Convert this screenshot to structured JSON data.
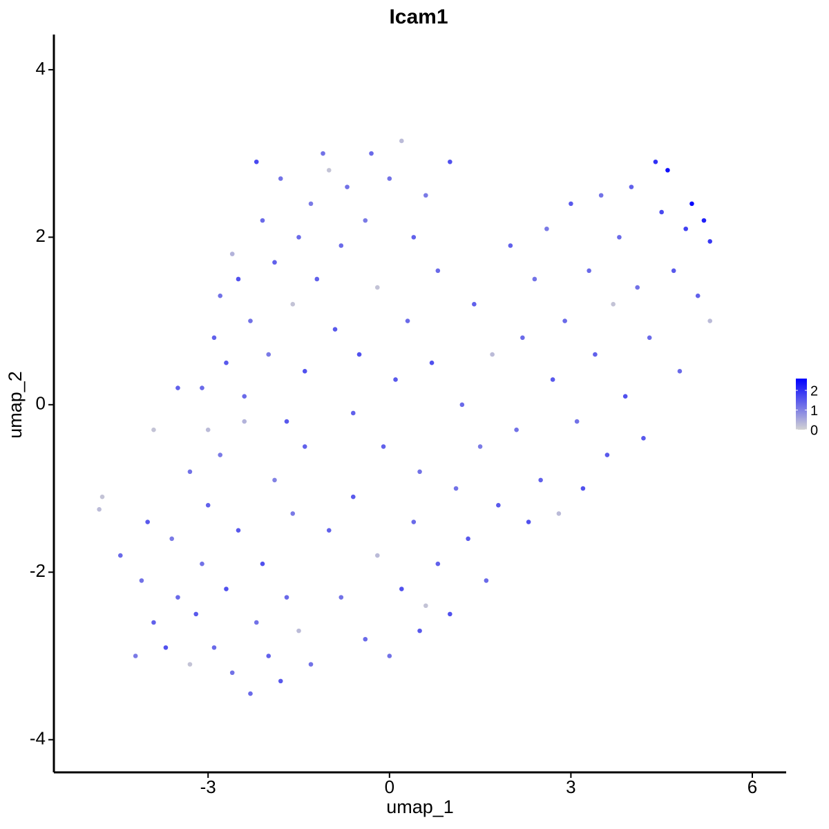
{
  "chart_data": {
    "type": "scatter",
    "title": "Icam1",
    "x_label": "umap_1",
    "y_label": "umap_2",
    "xlim": [
      -5.55,
      6.56
    ],
    "ylim": [
      -4.39,
      4.42
    ],
    "xticks": [
      -3,
      0,
      3,
      6
    ],
    "yticks": [
      -4,
      -2,
      0,
      2,
      4
    ],
    "color_lim": [
      0,
      2.6
    ],
    "color_ticks": [
      0,
      1,
      2
    ],
    "low_color": "#d3d3d3",
    "high_color": "#0000ff",
    "x": [
      -4.8,
      -4.75,
      -4.45,
      -4.1,
      -4.0,
      -3.9,
      -3.7,
      -3.6,
      -3.5,
      -3.3,
      -3.2,
      -3.1,
      -3.0,
      -2.9,
      -2.8,
      -2.7,
      -2.6,
      -2.5,
      -2.4,
      -2.3,
      -2.2,
      -2.1,
      -2.0,
      -1.9,
      -1.8,
      -1.7,
      -1.6,
      -1.5,
      -1.4,
      -1.3,
      -3.1,
      -3.0,
      -2.9,
      -2.8,
      -2.7,
      -2.6,
      -2.5,
      -2.4,
      -2.3,
      -2.2,
      -2.1,
      -2.0,
      -1.9,
      -1.8,
      -1.7,
      -1.6,
      -1.5,
      -1.4,
      -1.3,
      -1.2,
      -1.1,
      -1.0,
      -0.9,
      -0.8,
      -0.7,
      -0.6,
      -0.5,
      -0.4,
      -0.3,
      -0.2,
      -0.1,
      0.0,
      0.1,
      0.2,
      0.3,
      0.4,
      0.5,
      0.6,
      0.7,
      0.8,
      -1.0,
      -0.8,
      -0.6,
      -0.4,
      -0.2,
      0.0,
      0.2,
      0.4,
      0.5,
      0.6,
      0.8,
      1.0,
      1.1,
      1.2,
      1.3,
      1.4,
      1.5,
      1.6,
      1.7,
      1.8,
      2.0,
      2.1,
      2.2,
      2.3,
      2.4,
      2.5,
      2.6,
      2.7,
      2.8,
      2.9,
      3.0,
      3.1,
      3.2,
      3.3,
      3.4,
      3.5,
      3.6,
      3.7,
      3.8,
      3.9,
      4.0,
      4.1,
      4.2,
      4.3,
      4.4,
      4.5,
      4.6,
      4.7,
      4.8,
      4.9,
      5.0,
      5.1,
      5.2,
      5.3,
      5.3,
      -3.9,
      -3.5,
      -3.3,
      -4.2,
      1.0
    ],
    "y": [
      -1.25,
      -1.1,
      -1.8,
      -2.1,
      -1.4,
      -2.6,
      -2.9,
      -1.6,
      -2.3,
      -3.1,
      -2.5,
      -1.9,
      -1.2,
      -2.9,
      -0.6,
      -2.2,
      -3.2,
      -1.5,
      -0.2,
      -3.45,
      -2.6,
      -1.9,
      -3.0,
      -0.9,
      -3.3,
      -2.3,
      -1.3,
      -2.7,
      -0.5,
      -3.1,
      0.2,
      -0.3,
      0.8,
      1.3,
      0.5,
      1.8,
      1.5,
      0.1,
      1.0,
      2.9,
      2.2,
      0.6,
      1.7,
      2.7,
      -0.2,
      1.2,
      2.0,
      0.4,
      2.4,
      1.5,
      3.0,
      2.8,
      0.9,
      1.9,
      2.6,
      -0.1,
      0.6,
      2.2,
      3.0,
      1.4,
      -0.5,
      2.7,
      0.3,
      3.15,
      1.0,
      2.0,
      -0.8,
      2.5,
      0.5,
      1.6,
      -1.5,
      -2.3,
      -1.1,
      -2.8,
      -1.8,
      -3.0,
      -2.2,
      -1.4,
      -2.7,
      -2.4,
      -1.9,
      -2.5,
      -1.0,
      0.0,
      -1.6,
      1.2,
      -0.5,
      -2.1,
      0.6,
      -1.2,
      1.9,
      -0.3,
      0.8,
      -1.4,
      1.5,
      -0.9,
      2.1,
      0.3,
      -1.3,
      1.0,
      2.4,
      -0.2,
      -1.0,
      1.6,
      0.6,
      2.5,
      -0.6,
      1.2,
      2.0,
      0.1,
      2.6,
      1.4,
      -0.4,
      0.8,
      2.9,
      2.3,
      2.8,
      1.6,
      0.4,
      2.1,
      2.4,
      1.3,
      2.2,
      1.95,
      1.0,
      -0.3,
      0.2,
      -0.8,
      -3.0,
      2.9
    ],
    "values": [
      0.3,
      0.2,
      1.3,
      1.2,
      1.5,
      1.4,
      1.6,
      1.1,
      1.3,
      0.2,
      1.5,
      1.2,
      1.4,
      1.3,
      1.1,
      1.6,
      1.2,
      1.5,
      0.4,
      1.3,
      1.2,
      1.6,
      1.4,
      1.0,
      1.5,
      1.3,
      1.1,
      0.3,
      1.4,
      1.2,
      1.3,
      0.3,
      1.4,
      1.2,
      1.5,
      0.4,
      1.6,
      1.3,
      1.2,
      1.7,
      1.3,
      1.1,
      1.4,
      1.2,
      1.5,
      0.2,
      1.3,
      1.6,
      1.1,
      1.4,
      1.2,
      0.2,
      1.5,
      1.3,
      1.2,
      1.4,
      1.6,
      1.1,
      1.3,
      0.2,
      1.4,
      1.2,
      1.5,
      0.3,
      1.3,
      1.4,
      1.2,
      1.1,
      1.6,
      1.3,
      1.4,
      1.2,
      1.5,
      1.3,
      0.3,
      1.2,
      1.6,
      1.3,
      1.5,
      0.2,
      1.4,
      1.6,
      1.2,
      1.3,
      1.5,
      1.4,
      1.1,
      1.3,
      0.3,
      1.5,
      1.4,
      1.2,
      1.3,
      1.6,
      1.2,
      1.4,
      1.1,
      1.5,
      0.3,
      1.3,
      1.5,
      1.2,
      1.6,
      1.3,
      1.4,
      1.2,
      1.5,
      0.2,
      1.3,
      1.6,
      1.4,
      1.2,
      1.5,
      1.3,
      2.0,
      1.7,
      2.4,
      1.5,
      1.3,
      1.8,
      2.5,
      1.4,
      2.2,
      1.9,
      0.3,
      0.2,
      1.4,
      1.2,
      1.1,
      1.6
    ]
  }
}
